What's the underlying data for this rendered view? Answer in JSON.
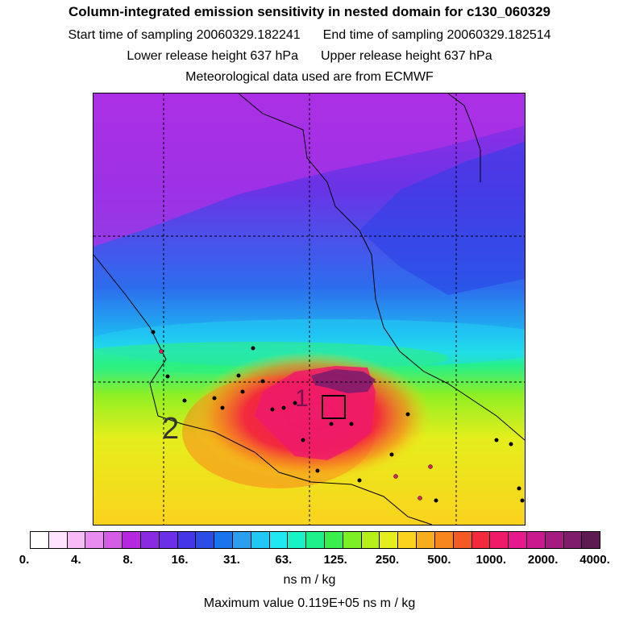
{
  "header": {
    "title": "Column-integrated emission sensitivity in nested domain for c130_060329",
    "start_sampling": "Start time of sampling 20060329.182241",
    "end_sampling": "End time of sampling 20060329.182514",
    "lower_release": "Lower release height  637 hPa",
    "upper_release": "Upper release height  637 hPa",
    "met_source": "Meteorological data used are from ECMWF"
  },
  "map": {
    "label_1": "1",
    "label_2": "2",
    "colors": {
      "coastline": "#000000",
      "grid": "#000000",
      "station": "#000000",
      "station_red": "#e0205a"
    }
  },
  "colorbar": {
    "colors": [
      "#ffffff",
      "#ffe3ff",
      "#f7bcf7",
      "#e98cef",
      "#d35ee5",
      "#b429e0",
      "#8a2ae3",
      "#6b2fe5",
      "#4537e6",
      "#2c4ce8",
      "#1a74ec",
      "#2b9ef0",
      "#22c7f4",
      "#1fe8f3",
      "#18f2c7",
      "#1ef08b",
      "#39ef4b",
      "#7cef25",
      "#b6ef1a",
      "#e5ee1c",
      "#fbd21d",
      "#f8ad1c",
      "#f7861e",
      "#f45a23",
      "#f22a3d",
      "#ef1a6a",
      "#e5198b",
      "#c81a8e",
      "#a51c80",
      "#7f1d6b",
      "#5e1a53"
    ],
    "tick_labels": [
      "0.",
      "4.",
      "8.",
      "16.",
      "31.",
      "63.",
      "125.",
      "250.",
      "500.",
      "1000.",
      "2000.",
      "4000."
    ],
    "units": "ns m / kg",
    "max_value": "Maximum value  0.119E+05 ns m / kg"
  }
}
